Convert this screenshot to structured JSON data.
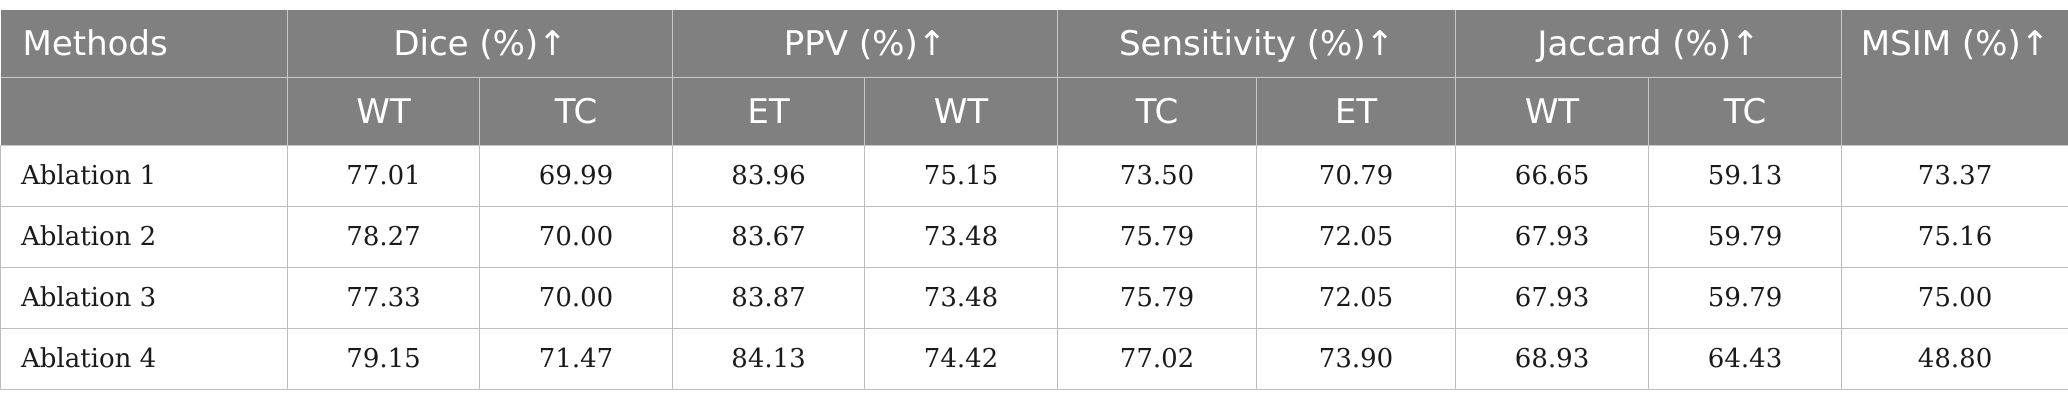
{
  "table": {
    "methods_header": "Methods",
    "groups": [
      {
        "label": "Dice (%)↑",
        "subs": [
          "WT",
          "TC"
        ]
      },
      {
        "label": "PPV (%)↑",
        "subs": [
          "ET",
          "WT"
        ]
      },
      {
        "label": "Sensitivity (%)↑",
        "subs": [
          "TC",
          "ET"
        ]
      },
      {
        "label": "Jaccard (%)↑",
        "subs": [
          "WT",
          "TC"
        ]
      }
    ],
    "msim_header": "MSIM (%)↑",
    "rows": [
      {
        "method": "Ablation 1",
        "values": [
          "77.01",
          "69.99",
          "83.96",
          "75.15",
          "73.50",
          "70.79",
          "66.65",
          "59.13",
          "73.37"
        ]
      },
      {
        "method": "Ablation 2",
        "values": [
          "78.27",
          "70.00",
          "83.67",
          "73.48",
          "75.79",
          "72.05",
          "67.93",
          "59.79",
          "75.16"
        ]
      },
      {
        "method": "Ablation 3",
        "values": [
          "77.33",
          "70.00",
          "83.87",
          "73.48",
          "75.79",
          "72.05",
          "67.93",
          "59.79",
          "75.00"
        ]
      },
      {
        "method": "Ablation 4",
        "values": [
          "79.15",
          "71.47",
          "84.13",
          "74.42",
          "77.02",
          "73.90",
          "68.93",
          "64.43",
          "48.80"
        ]
      }
    ],
    "colors": {
      "header_bg": "#7f807f",
      "header_text": "#ffffff",
      "border": "#bdbdbd"
    }
  }
}
